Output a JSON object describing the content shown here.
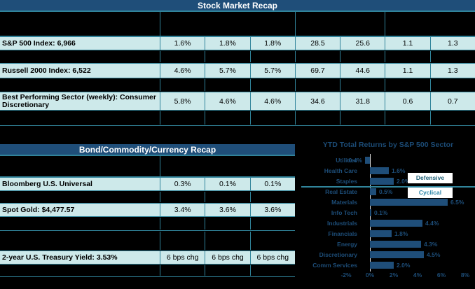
{
  "colors": {
    "background": "#000000",
    "header_blue": "#1f4e79",
    "row_cyan": "#cde9ea",
    "grid_teal": "#31849b",
    "bar_blue": "#1f4e79",
    "chart_text_blue": "#1d4d78",
    "defensive_text": "#1d5f75",
    "cyclical_text": "#2c86a8"
  },
  "stock_table": {
    "title": "Stock Market Recap",
    "rows": [
      {
        "label": "S&P 500 Index: 6,966",
        "values": [
          "1.6%",
          "1.8%",
          "1.8%",
          "28.5",
          "25.6",
          "1.1",
          "1.3"
        ]
      },
      {
        "label": "Russell 2000 Index: 6,522",
        "values": [
          "4.6%",
          "5.7%",
          "5.7%",
          "69.7",
          "44.6",
          "1.1",
          "1.3"
        ]
      },
      {
        "label": "Best Performing Sector (weekly): Consumer Discretionary",
        "values": [
          "5.8%",
          "4.6%",
          "4.6%",
          "34.6",
          "31.8",
          "0.6",
          "0.7"
        ]
      }
    ]
  },
  "bond_table": {
    "title": "Bond/Commodity/Currency Recap",
    "rows": [
      {
        "label": "Bloomberg U.S. Universal",
        "values": [
          "0.3%",
          "0.1%",
          "0.1%"
        ]
      },
      {
        "label": "Spot Gold: $4,477.57",
        "values": [
          "3.4%",
          "3.6%",
          "3.6%"
        ]
      },
      {
        "label": "2-year U.S. Treasury Yield: 3.53%",
        "values": [
          "6 bps chg",
          "6 bps chg",
          "6 bps chg"
        ]
      }
    ]
  },
  "chart_data": {
    "type": "bar",
    "orientation": "horizontal",
    "title": "YTD Total Returns by S&P 500 Sector",
    "categories": [
      "Utilities",
      "Health Care",
      "Staples",
      "Real Estate",
      "Materials",
      "Info Tech",
      "Industrials",
      "Financials",
      "Energy",
      "Discretionary",
      "Comm Services"
    ],
    "values": [
      -0.4,
      1.6,
      2.0,
      0.5,
      6.5,
      0.1,
      4.4,
      1.8,
      4.3,
      4.5,
      2.0
    ],
    "data_labels": [
      "-0.4%",
      "1.6%",
      "2.0%",
      "0.5%",
      "6.5%",
      "0.1%",
      "4.4%",
      "1.8%",
      "4.3%",
      "4.5%",
      "2.0%"
    ],
    "xticks": {
      "labels": [
        "-2%",
        "0%",
        "2%",
        "4%",
        "6%",
        "8%"
      ],
      "values": [
        -2,
        0,
        2,
        4,
        6,
        8
      ]
    },
    "xlim": [
      -2.6,
      8.8
    ],
    "grid": false,
    "group_divider_after_index": 2,
    "group_annotations": [
      {
        "text": "Defensive"
      },
      {
        "text": "Cyclical"
      }
    ]
  }
}
